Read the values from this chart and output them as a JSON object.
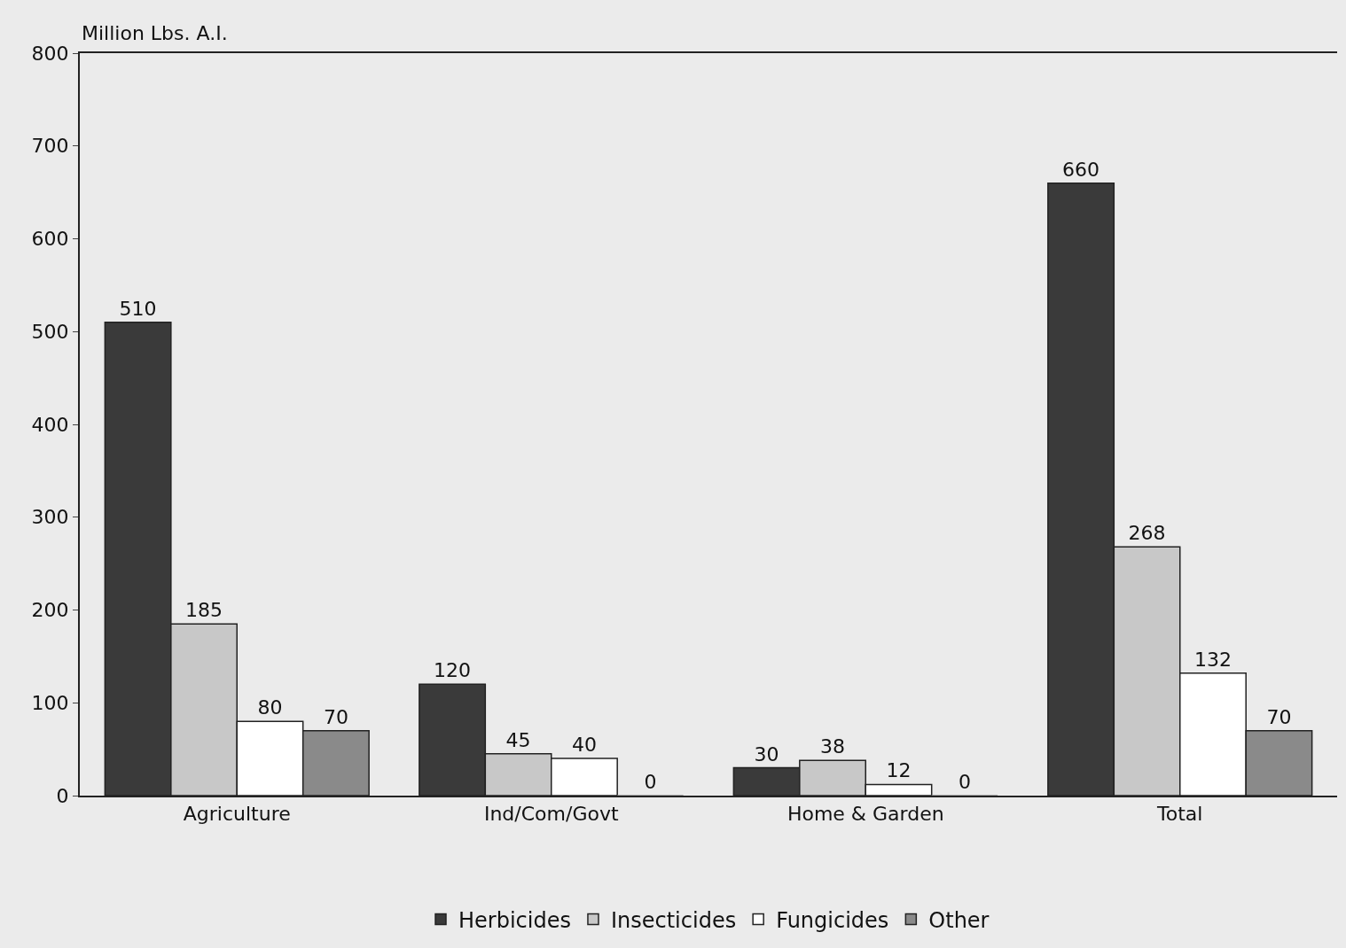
{
  "chart_data": {
    "type": "bar",
    "ylabel": "Million Lbs. A.I.",
    "categories": [
      "Agriculture",
      "Ind/Com/Govt",
      "Home & Garden",
      "Total"
    ],
    "series": [
      {
        "name": "Herbicides",
        "color": "#3a3a3a",
        "values": [
          510,
          120,
          30,
          660
        ]
      },
      {
        "name": "Insecticides",
        "color": "#c8c8c8",
        "values": [
          185,
          45,
          38,
          268
        ]
      },
      {
        "name": "Fungicides",
        "color": "#ffffff",
        "values": [
          80,
          40,
          12,
          132
        ]
      },
      {
        "name": "Other",
        "color": "#8a8a8a",
        "values": [
          70,
          0,
          0,
          70
        ]
      }
    ],
    "ylim": [
      0,
      800
    ],
    "yticks": [
      0,
      100,
      200,
      300,
      400,
      500,
      600,
      700,
      800
    ],
    "data_labels": true,
    "grid": false,
    "legend": "bottom"
  }
}
